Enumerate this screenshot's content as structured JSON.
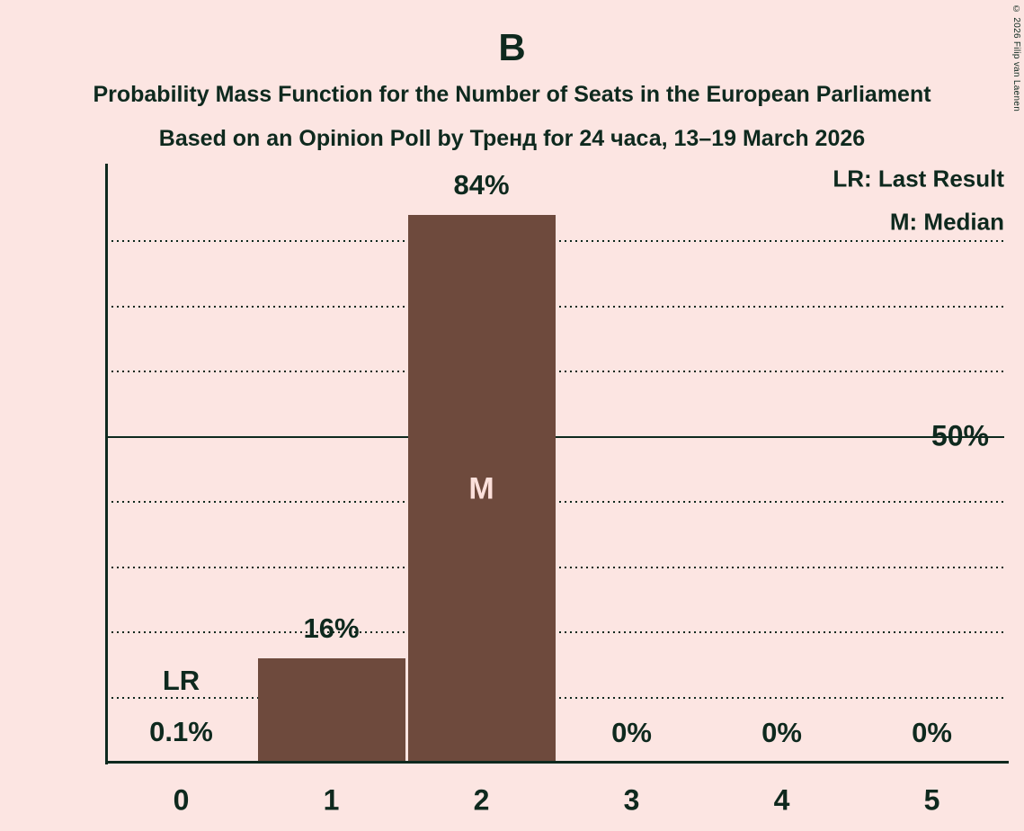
{
  "title": "B",
  "subtitle": "Probability Mass Function for the Number of Seats in the European Parliament",
  "poll_line": "Based on an Opinion Poll by Тренд for 24 часа, 13–19 March 2026",
  "copyright": "© 2026 Filip van Laenen",
  "legend": {
    "last_result": "LR: Last Result",
    "median": "M: Median"
  },
  "y_axis": {
    "label_50": "50%"
  },
  "colors": {
    "background": "#FCE5E2",
    "bar": "#6E4A3D",
    "ink": "#0E291E",
    "bar_label": "#FCE0DB"
  },
  "chart_data": {
    "type": "bar",
    "title": "B",
    "categories": [
      "0",
      "1",
      "2",
      "3",
      "4",
      "5"
    ],
    "values": [
      0.1,
      16,
      84,
      0,
      0,
      0
    ],
    "value_labels": [
      "0.1%",
      "16%",
      "84%",
      "0%",
      "0%",
      "0%"
    ],
    "annotations": [
      {
        "category": "0",
        "label": "LR",
        "meaning": "Last Result"
      },
      {
        "category": "2",
        "label": "M",
        "meaning": "Median"
      }
    ],
    "ylim": [
      0,
      92
    ],
    "y_tick_labeled_pct": 50,
    "y_gridlines_pct": [
      10,
      20,
      30,
      40,
      50,
      60,
      70,
      80
    ],
    "solid_gridline_pct": 50,
    "grid": "dotted horizontal",
    "legend_position": "top-right"
  }
}
